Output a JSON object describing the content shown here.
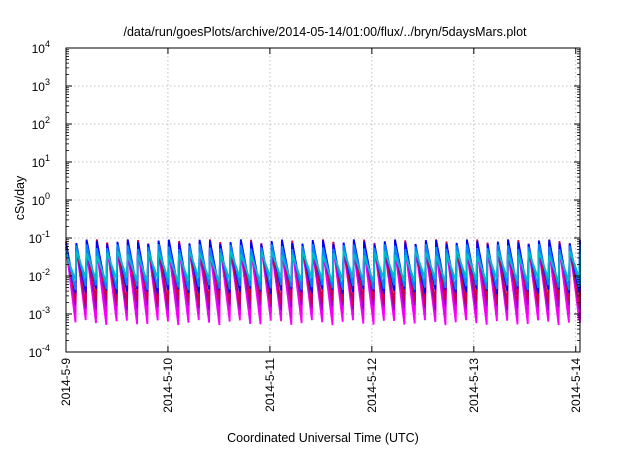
{
  "chart_data": {
    "type": "line",
    "title": "/data/run/goesPlots/archive/2014-05-14/01:00/flux/../bryn/5daysMars.plot",
    "xlabel": "Coordinated Universal Time (UTC)",
    "ylabel": "cSv/day",
    "yscale": "log",
    "ylim_exponents": [
      -4,
      4
    ],
    "y_ticks": [
      {
        "base": "10",
        "exp": "-4"
      },
      {
        "base": "10",
        "exp": "-3"
      },
      {
        "base": "10",
        "exp": "-2"
      },
      {
        "base": "10",
        "exp": "-1"
      },
      {
        "base": "10",
        "exp": "0"
      },
      {
        "base": "10",
        "exp": "1"
      },
      {
        "base": "10",
        "exp": "2"
      },
      {
        "base": "10",
        "exp": "3"
      },
      {
        "base": "10",
        "exp": "4"
      }
    ],
    "x_ticks": [
      "2014-5-9",
      "2014-5-10",
      "2014-5-11",
      "2014-5-12",
      "2014-5-13",
      "2014-5-14"
    ],
    "xlim": [
      "2014-05-09 00:00",
      "2014-05-14 01:00"
    ],
    "grid": true,
    "sawtooth_cycles": 50,
    "series": [
      {
        "color": "#ff00ff",
        "peak": 0.06,
        "trough": 0.0006
      },
      {
        "color": "#ee00ee",
        "peak": 0.05,
        "trough": 0.0009
      },
      {
        "color": "#9900cc",
        "peak": 0.07,
        "trough": 0.0015
      },
      {
        "color": "#cc0044",
        "peak": 0.08,
        "trough": 0.002
      },
      {
        "color": "#0000ff",
        "peak": 0.08,
        "trough": 0.004
      },
      {
        "color": "#0088ff",
        "peak": 0.06,
        "trough": 0.005
      },
      {
        "color": "#00bbcc",
        "peak": 0.04,
        "trough": 0.008
      }
    ]
  }
}
